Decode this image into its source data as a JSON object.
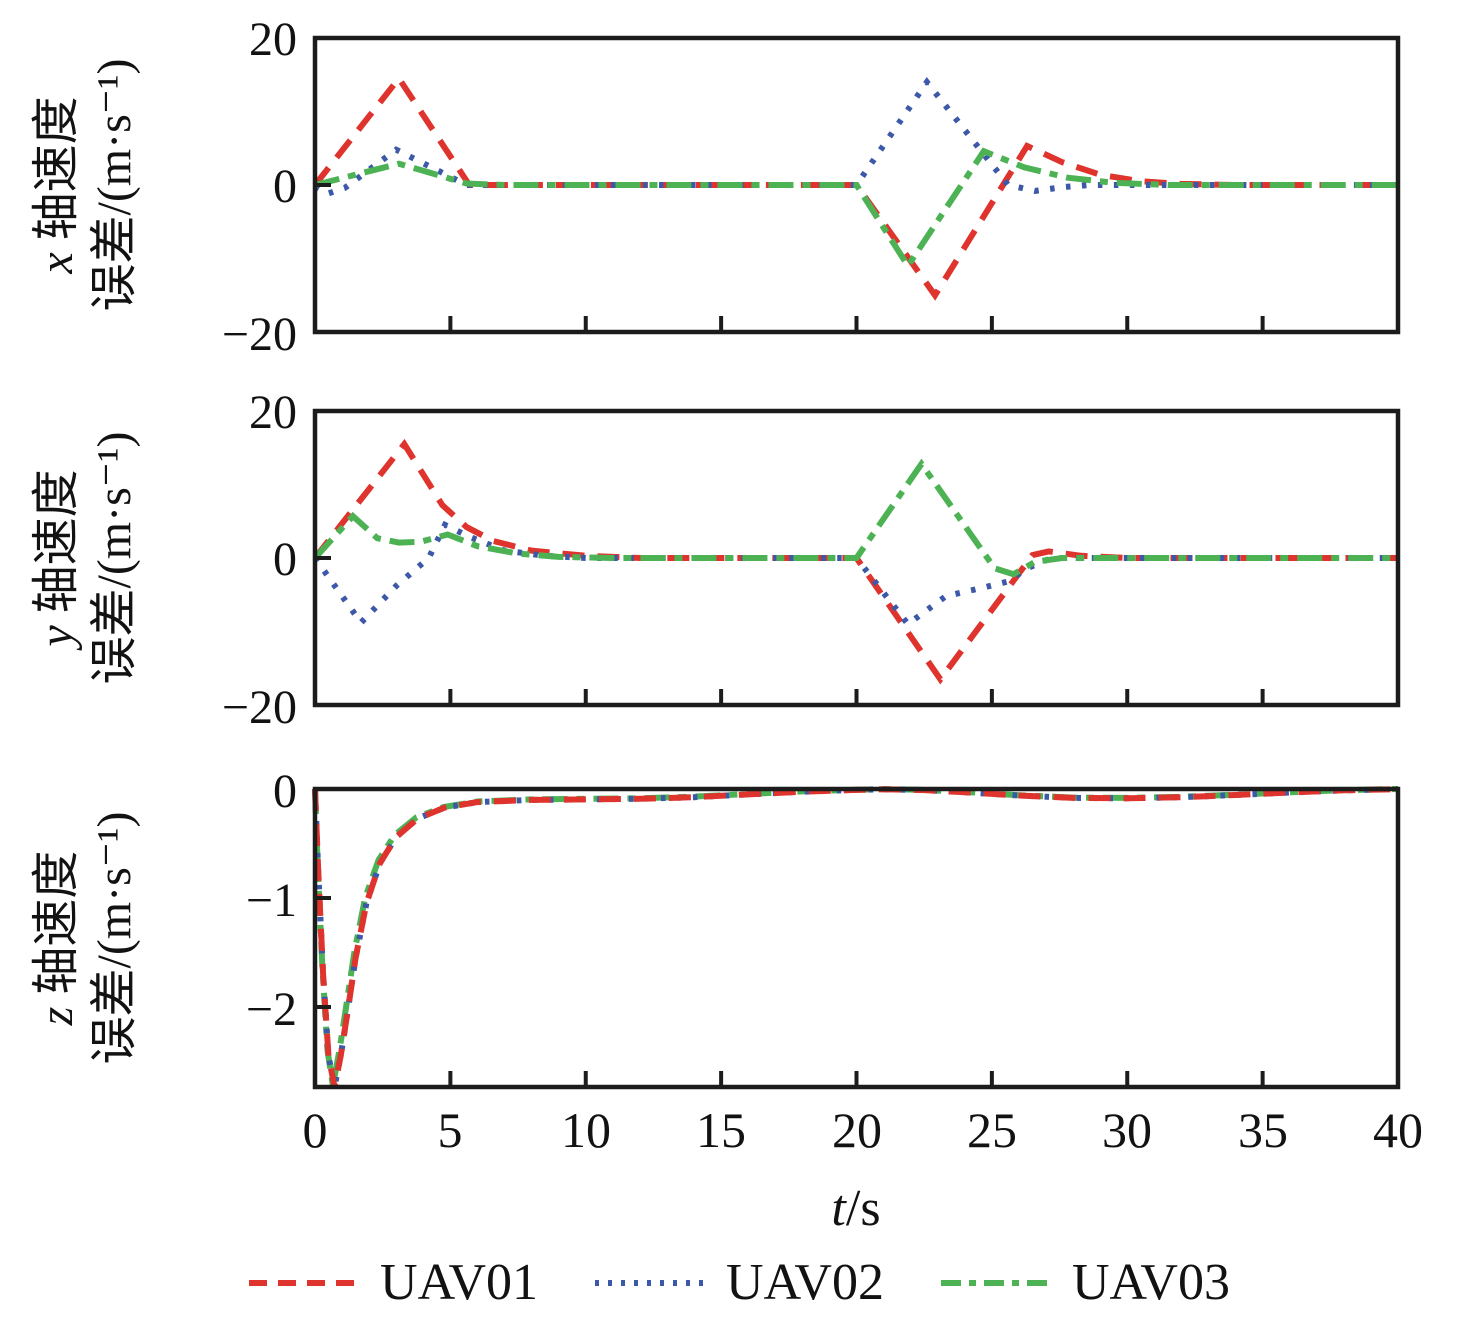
{
  "colors": {
    "uav01": "#df342e",
    "uav02": "#3c58a8",
    "uav03": "#4db254",
    "axis": "#1c1c1c"
  },
  "axis": {
    "xlabel_letter": "t",
    "xlabel_unit": "/s",
    "xtick_labels": [
      "0",
      "5",
      "10",
      "15",
      "20",
      "25",
      "30",
      "35",
      "40"
    ]
  },
  "legend": {
    "items": [
      {
        "label": "UAV01",
        "series": "uav01",
        "style": "dashed"
      },
      {
        "label": "UAV02",
        "series": "uav02",
        "style": "dotted"
      },
      {
        "label": "UAV03",
        "series": "uav03",
        "style": "dashdot"
      }
    ]
  },
  "chart_data": [
    {
      "type": "line",
      "ylabel_letter": "x",
      "ylabel_line1_rest": " 轴速度",
      "ylabel_line2": "误差/(m·s⁻¹)",
      "xlim": [
        0,
        40
      ],
      "ylim": [
        -20,
        20
      ],
      "xticks_inner": [
        5,
        10,
        15,
        20,
        25,
        30,
        35
      ],
      "yticks": [
        20,
        0,
        -20
      ],
      "ytick_labels": [
        "20",
        "0",
        "−20"
      ],
      "grid": false,
      "series": [
        {
          "name": "UAV01",
          "key": "uav01",
          "style": "dashed",
          "x": [
            0,
            3.1,
            5.7,
            20,
            22.9,
            26.3,
            27.6,
            29,
            30.5,
            32,
            34,
            40
          ],
          "y": [
            0,
            14.5,
            0,
            0,
            -15,
            5.3,
            3.1,
            1.4,
            0.5,
            0.15,
            0,
            0
          ]
        },
        {
          "name": "UAV02",
          "key": "uav02",
          "style": "dotted",
          "x": [
            0,
            0.45,
            1.1,
            3.0,
            5.6,
            20,
            22.6,
            25.6,
            26.6,
            27.6,
            28.6,
            40
          ],
          "y": [
            -0.2,
            -1.2,
            -0.4,
            4.8,
            0,
            0,
            14,
            0,
            -0.8,
            -0.3,
            0,
            0
          ]
        },
        {
          "name": "UAV03",
          "key": "uav03",
          "style": "dashdot",
          "x": [
            0,
            3.1,
            5.6,
            7,
            20,
            21.9,
            24.7,
            26.2,
            27.8,
            29.5,
            31.5,
            40
          ],
          "y": [
            0,
            2.9,
            0.2,
            0,
            0,
            -11,
            4.6,
            2.4,
            1,
            0.3,
            0,
            0
          ]
        }
      ]
    },
    {
      "type": "line",
      "ylabel_letter": "y",
      "ylabel_line1_rest": " 轴速度",
      "ylabel_line2": "误差/(m·s⁻¹)",
      "xlim": [
        0,
        40
      ],
      "ylim": [
        -20,
        20
      ],
      "xticks_inner": [
        5,
        10,
        15,
        20,
        25,
        30,
        35
      ],
      "yticks": [
        20,
        0,
        -20
      ],
      "ytick_labels": [
        "20",
        "0",
        "−20"
      ],
      "grid": false,
      "series": [
        {
          "name": "UAV01",
          "key": "uav01",
          "style": "dashed",
          "x": [
            0,
            3.3,
            4.7,
            5.6,
            6.6,
            8,
            10,
            12,
            20,
            23.1,
            26.5,
            27.1,
            28.3,
            30,
            40
          ],
          "y": [
            0,
            15.5,
            7.2,
            4.2,
            2.3,
            1,
            0.3,
            0,
            0,
            -16.5,
            0.4,
            0.9,
            0.3,
            0,
            0
          ]
        },
        {
          "name": "UAV02",
          "key": "uav02",
          "style": "dotted",
          "x": [
            0,
            1.7,
            3,
            4.2,
            4.8,
            5.7,
            7,
            8.5,
            10,
            20,
            21.9,
            23.3,
            24.6,
            25.6,
            26.3,
            27.2,
            40
          ],
          "y": [
            0,
            -8.8,
            -3.8,
            0,
            4.5,
            2.9,
            1,
            0.3,
            0,
            0,
            -9,
            -5.2,
            -4.1,
            -3.2,
            -1.4,
            0,
            0
          ]
        },
        {
          "name": "UAV03",
          "key": "uav03",
          "style": "dashdot",
          "x": [
            0,
            1.4,
            2.3,
            3.1,
            3.9,
            4.9,
            6,
            7.5,
            9,
            11,
            20,
            22.4,
            25.1,
            25.8,
            26.6,
            27.6,
            40
          ],
          "y": [
            0,
            5.7,
            2.7,
            2.1,
            2.2,
            3.2,
            1.6,
            0.6,
            0.15,
            0,
            0,
            12.8,
            -1.4,
            -2.2,
            -0.5,
            0,
            0
          ]
        }
      ]
    },
    {
      "type": "line",
      "ylabel_letter": "z",
      "ylabel_line1_rest": " 轴速度",
      "ylabel_line2": "误差/(m·s⁻¹)",
      "xlim": [
        0,
        40
      ],
      "ylim": [
        -2.734,
        0
      ],
      "xticks_inner": [
        5,
        10,
        15,
        20,
        25,
        30,
        35
      ],
      "yticks": [
        0,
        -1,
        -2
      ],
      "ytick_labels": [
        "0",
        "−1",
        "−2"
      ],
      "grid": false,
      "series": [
        {
          "name": "UAV01",
          "key": "uav01",
          "style": "dashed",
          "x": [
            0,
            0.12,
            0.3,
            0.5,
            0.72,
            0.95,
            1.2,
            1.5,
            1.9,
            2.4,
            3,
            3.8,
            4.8,
            6,
            8,
            10,
            12,
            14,
            16,
            18,
            20,
            21,
            22.5,
            24,
            26,
            28,
            30,
            32,
            34,
            36,
            38,
            40
          ],
          "y": [
            0,
            -0.75,
            -1.7,
            -2.45,
            -2.73,
            -2.45,
            -2.05,
            -1.55,
            -1.05,
            -0.68,
            -0.44,
            -0.27,
            -0.17,
            -0.12,
            -0.1,
            -0.095,
            -0.09,
            -0.075,
            -0.05,
            -0.025,
            -0.008,
            -0.003,
            -0.01,
            -0.03,
            -0.06,
            -0.082,
            -0.085,
            -0.075,
            -0.055,
            -0.032,
            -0.012,
            -0.002
          ]
        },
        {
          "name": "UAV02",
          "key": "uav02",
          "style": "dotted",
          "x": [
            0,
            0.12,
            0.3,
            0.5,
            0.72,
            0.95,
            1.2,
            1.5,
            1.9,
            2.4,
            3,
            3.8,
            4.8,
            6,
            8,
            10,
            12,
            14,
            16,
            18,
            20,
            21,
            22.5,
            24,
            26,
            28,
            30,
            32,
            34,
            36,
            38,
            40
          ],
          "y": [
            0,
            -0.75,
            -1.7,
            -2.45,
            -2.73,
            -2.45,
            -2.05,
            -1.55,
            -1.05,
            -0.68,
            -0.44,
            -0.27,
            -0.17,
            -0.12,
            -0.1,
            -0.095,
            -0.09,
            -0.075,
            -0.05,
            -0.025,
            -0.008,
            -0.003,
            -0.01,
            -0.03,
            -0.06,
            -0.082,
            -0.085,
            -0.075,
            -0.055,
            -0.032,
            -0.012,
            -0.002
          ]
        },
        {
          "name": "UAV03",
          "key": "uav03",
          "style": "dashdot",
          "x": [
            0,
            0.1,
            0.27,
            0.46,
            0.66,
            0.9,
            1.15,
            1.45,
            1.85,
            2.35,
            2.95,
            3.75,
            4.75,
            6,
            8,
            10,
            12,
            14,
            16,
            18,
            20,
            21,
            22.5,
            24,
            26,
            28,
            30,
            32,
            34,
            36,
            38,
            40
          ],
          "y": [
            0,
            -0.7,
            -1.62,
            -2.4,
            -2.72,
            -2.4,
            -2.0,
            -1.5,
            -1.0,
            -0.65,
            -0.42,
            -0.26,
            -0.165,
            -0.115,
            -0.095,
            -0.09,
            -0.085,
            -0.07,
            -0.046,
            -0.022,
            -0.006,
            -0.001,
            -0.008,
            -0.027,
            -0.057,
            -0.079,
            -0.082,
            -0.072,
            -0.052,
            -0.03,
            -0.01,
            0
          ]
        }
      ]
    }
  ]
}
